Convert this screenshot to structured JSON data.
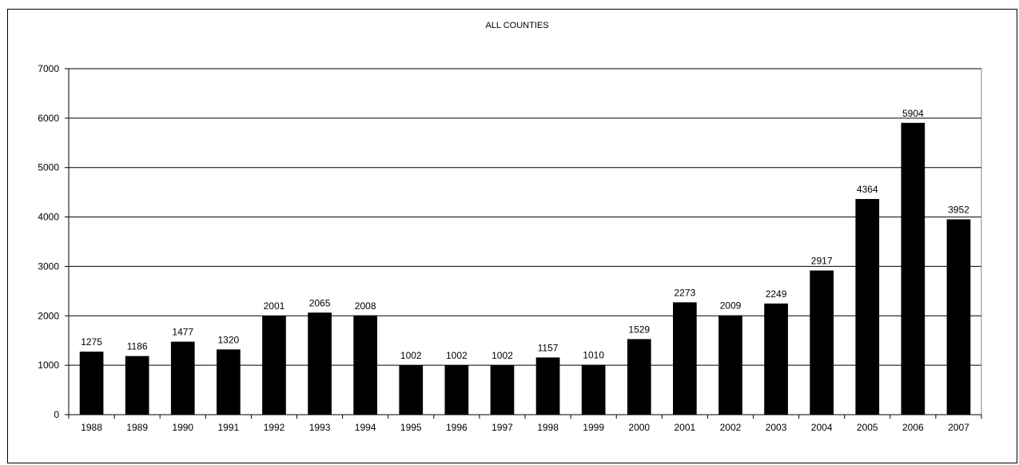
{
  "chart_data": {
    "type": "bar",
    "title": "ALL COUNTIES",
    "xlabel": "",
    "ylabel": "",
    "categories": [
      "1988",
      "1989",
      "1990",
      "1991",
      "1992",
      "1993",
      "1994",
      "1995",
      "1996",
      "1997",
      "1998",
      "1999",
      "2000",
      "2001",
      "2002",
      "2003",
      "2004",
      "2005",
      "2006",
      "2007"
    ],
    "values": [
      1275,
      1186,
      1477,
      1320,
      2001,
      2065,
      2008,
      1002,
      1002,
      1002,
      1157,
      1010,
      1529,
      2273,
      2009,
      2249,
      2917,
      4364,
      5904,
      3952
    ],
    "ylim": [
      0,
      7000
    ],
    "yticks": [
      0,
      1000,
      2000,
      3000,
      4000,
      5000,
      6000,
      7000
    ],
    "grid": true,
    "legend": "none",
    "colors": {
      "bar": "#000000",
      "grid": "#000000",
      "background": "#ffffff"
    }
  }
}
